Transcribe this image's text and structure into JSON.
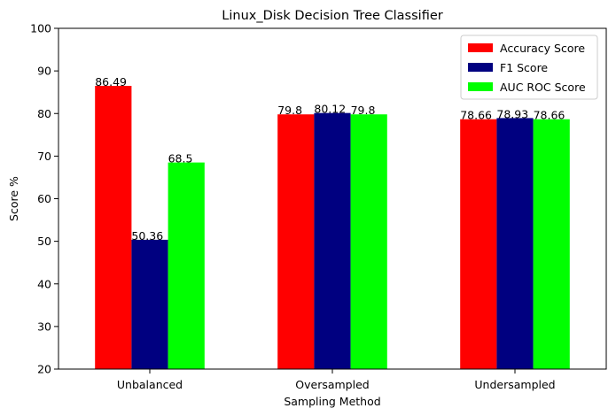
{
  "chart_data": {
    "type": "bar",
    "title": "Linux_Disk Decision Tree Classifier",
    "xlabel": "Sampling Method",
    "ylabel": "Score %",
    "categories": [
      "Unbalanced",
      "Oversampled",
      "Undersampled"
    ],
    "series": [
      {
        "name": "Accuracy Score",
        "color": "#ff0000",
        "values": [
          86.49,
          79.8,
          78.66
        ]
      },
      {
        "name": "F1 Score",
        "color": "#000080",
        "values": [
          50.36,
          80.12,
          78.93
        ]
      },
      {
        "name": "AUC ROC Score",
        "color": "#00ff00",
        "values": [
          68.5,
          79.8,
          78.66
        ]
      }
    ],
    "value_labels": [
      [
        "86.49",
        "50.36",
        "68.5"
      ],
      [
        "79.8",
        "80.12",
        "79.8"
      ],
      [
        "78.66",
        "78.93",
        "78.66"
      ]
    ],
    "ylim": [
      20,
      100
    ],
    "yticks": [
      20,
      30,
      40,
      50,
      60,
      70,
      80,
      90,
      100
    ],
    "grid": false,
    "legend_position": "top-right"
  }
}
